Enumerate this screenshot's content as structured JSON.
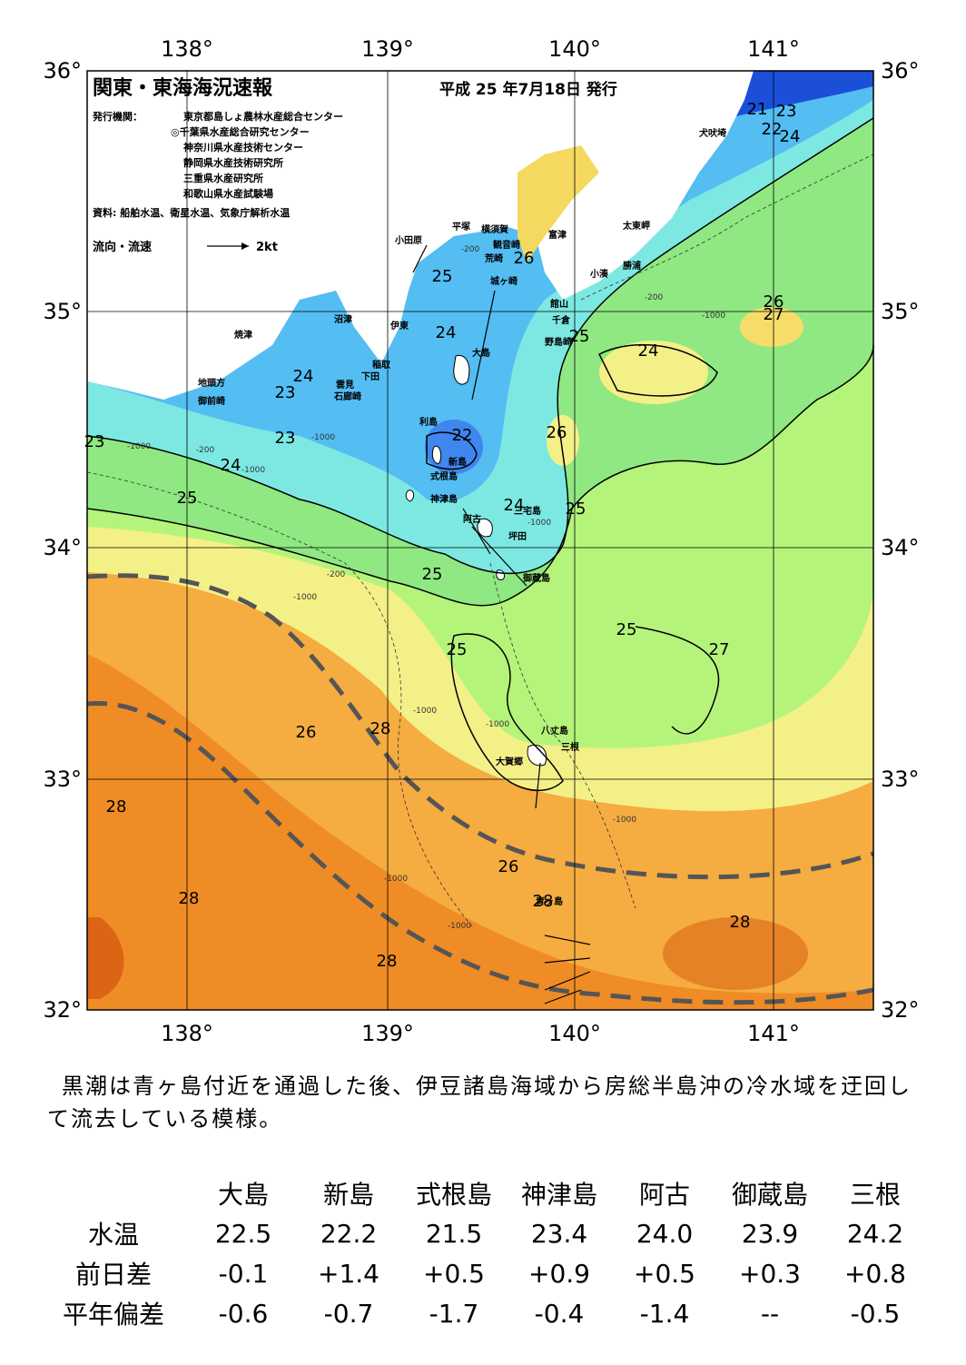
{
  "header": {
    "title": "関東・東海海況速報",
    "issue_date": "平成 25 年7月18日 発行",
    "issuers_label": "発行機関：",
    "issuers": [
      "東京都島しょ農林水産総合センター",
      "◎千葉県水産総合研究センター",
      "神奈川県水産技術センター",
      "静岡県水産技術研究所",
      "三重県水産研究所",
      "和歌山県水産試験場"
    ],
    "sources": "資料: 船舶水温、衛星水温、気象庁解析水温",
    "flow_legend": "流向・流速",
    "flow_scale": "2kt"
  },
  "axes": {
    "longitude_ticks": [
      "138°",
      "139°",
      "140°",
      "141°"
    ],
    "latitude_ticks": [
      "36°",
      "35°",
      "34°",
      "33°",
      "32°"
    ]
  },
  "isotherm_labels": [
    "21",
    "23",
    "22",
    "24",
    "26",
    "25",
    "24",
    "27",
    "26",
    "24",
    "23",
    "24",
    "23",
    "22",
    "26",
    "23",
    "24",
    "25",
    "24",
    "25",
    "25",
    "25",
    "25",
    "25",
    "27",
    "26",
    "28",
    "28",
    "26",
    "28",
    "28",
    "28"
  ],
  "depth_labels": [
    "-200",
    "-1000",
    "-200",
    "-1000",
    "-1000",
    "-200",
    "-1000",
    "-1000",
    "-1000",
    "-1000",
    "-1000",
    "-1000",
    "-1000",
    "-1000",
    "-200"
  ],
  "places": [
    "犬吠埼",
    "太東岬",
    "勝浦",
    "小湊",
    "富津",
    "観音崎",
    "横須賀",
    "平塚",
    "小田原",
    "荒崎",
    "城ヶ崎",
    "館山",
    "千倉",
    "野島崎",
    "沼津",
    "伊東",
    "大島",
    "稲取",
    "下田",
    "雲見",
    "石廊崎",
    "焼津",
    "地頭方",
    "御前崎",
    "利島",
    "新島",
    "式根島",
    "神津島",
    "三宅島",
    "阿古",
    "坪田",
    "御蔵島",
    "八丈島",
    "三根",
    "大賀郷",
    "青ヶ島"
  ],
  "colors": {
    "t21": "#1c4fd8",
    "t22": "#3f86ee",
    "t23": "#54bdf2",
    "t24": "#7de8e2",
    "t25": "#8fe882",
    "t26": "#b4f47a",
    "t26y": "#f4f088",
    "t27": "#f8dc6a",
    "t28": "#f5ac40",
    "t29": "#f08c25",
    "t30": "#db6515",
    "land": "#ffffff",
    "kuroshio": "#555555"
  },
  "summary": "黒潮は青ヶ島付近を通過した後、伊豆諸島海域から房総半島沖の冷水域を迂回して流去している模様。",
  "stats": {
    "headers": [
      "大島",
      "新島",
      "式根島",
      "神津島",
      "阿古",
      "御蔵島",
      "三根"
    ],
    "rows": [
      {
        "label": "水温",
        "values": [
          "22.5",
          "22.2",
          "21.5",
          "23.4",
          "24.0",
          "23.9",
          "24.2"
        ]
      },
      {
        "label": "前日差",
        "values": [
          "-0.1",
          "+1.4",
          "+0.5",
          "+0.9",
          "+0.5",
          "+0.3",
          "+0.8"
        ]
      },
      {
        "label": "平年偏差",
        "values": [
          "-0.6",
          "-0.7",
          "-1.7",
          "-0.4",
          "-1.4",
          "--",
          "-0.5"
        ]
      }
    ]
  }
}
